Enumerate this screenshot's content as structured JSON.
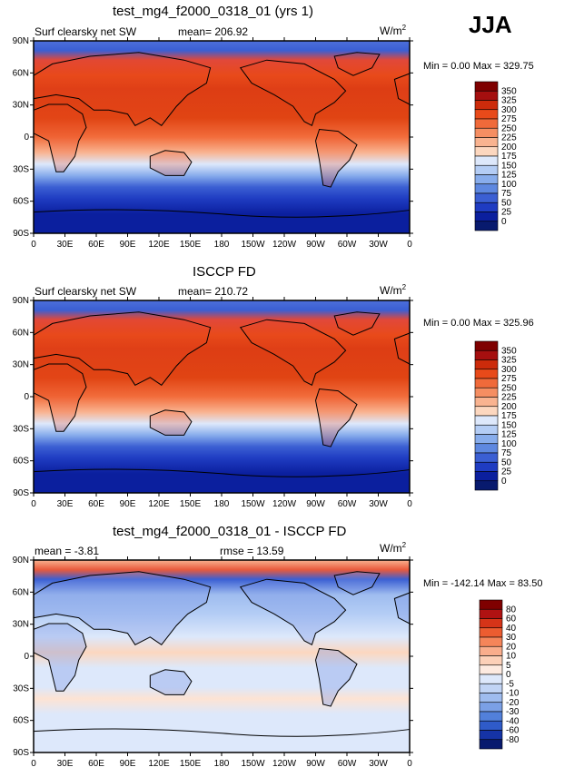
{
  "season": "JJA",
  "lat_ticks": [
    "90N",
    "60N",
    "30N",
    "0",
    "30S",
    "60S",
    "90S"
  ],
  "lon_ticks": [
    "0",
    "30E",
    "60E",
    "90E",
    "120E",
    "150E",
    "180",
    "150W",
    "120W",
    "90W",
    "60W",
    "30W",
    "0"
  ],
  "panels": [
    {
      "title": "test_mg4_f2000_0318_01 (yrs 1)",
      "left_label": "Surf clearsky net SW",
      "mean_text": "mean= 206.92",
      "rmse_text": "",
      "units_base": "W/m",
      "units_exp": "2",
      "minmax": "Min =    0.00 Max = 329.75",
      "colorbar": {
        "labels": [
          "350",
          "325",
          "300",
          "275",
          "250",
          "225",
          "200",
          "175",
          "150",
          "125",
          "100",
          "75",
          "50",
          "25",
          "0"
        ],
        "colors": [
          "#7f0000",
          "#a50f0f",
          "#cc2b0b",
          "#e84a1a",
          "#f06a3a",
          "#f58e62",
          "#f9b390",
          "#fcd7bf",
          "#dde8fb",
          "#b4cdf5",
          "#88adec",
          "#5e88e0",
          "#3b5fd3",
          "#1f3cc2",
          "#0b1f9e",
          "#081a6e"
        ]
      },
      "map": "absolute"
    },
    {
      "title": "ISCCP FD",
      "left_label": "Surf clearsky net SW",
      "mean_text": "mean= 210.72",
      "rmse_text": "",
      "units_base": "W/m",
      "units_exp": "2",
      "minmax": "Min =    0.00 Max = 325.96",
      "colorbar": {
        "labels": [
          "350",
          "325",
          "300",
          "275",
          "250",
          "225",
          "200",
          "175",
          "150",
          "125",
          "100",
          "75",
          "50",
          "25",
          "0"
        ],
        "colors": [
          "#7f0000",
          "#a50f0f",
          "#cc2b0b",
          "#e84a1a",
          "#f06a3a",
          "#f58e62",
          "#f9b390",
          "#fcd7bf",
          "#dde8fb",
          "#b4cdf5",
          "#88adec",
          "#5e88e0",
          "#3b5fd3",
          "#1f3cc2",
          "#0b1f9e",
          "#081a6e"
        ]
      },
      "map": "absolute"
    },
    {
      "title": "test_mg4_f2000_0318_01 - ISCCP FD",
      "left_label": "",
      "mean_text": "mean =   -3.81",
      "rmse_text": "rmse =   13.59",
      "units_base": "W/m",
      "units_exp": "2",
      "minmax": "Min = -142.14 Max =  83.50",
      "colorbar": {
        "labels": [
          "80",
          "60",
          "40",
          "30",
          "20",
          "10",
          "5",
          "0",
          "-5",
          "-10",
          "-20",
          "-30",
          "-40",
          "-60",
          "-80"
        ],
        "colors": [
          "#7f0000",
          "#b01212",
          "#d63418",
          "#ec5c30",
          "#f5855a",
          "#f9ad8c",
          "#fcd0b8",
          "#fdeae0",
          "#dde8fb",
          "#c1d4f5",
          "#9fbcef",
          "#7ba0e6",
          "#5280db",
          "#2f5bc9",
          "#1533a6",
          "#081a6e"
        ]
      },
      "map": "diff"
    }
  ]
}
